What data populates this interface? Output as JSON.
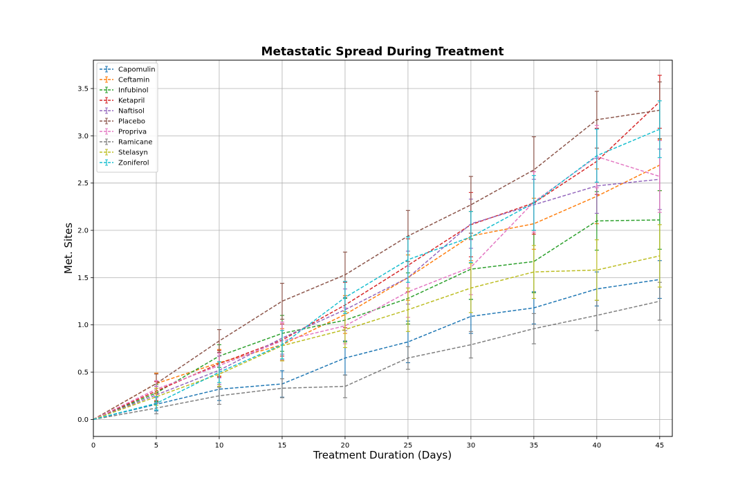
{
  "chart_data": {
    "type": "line",
    "title": "Metastatic Spread During Treatment",
    "xlabel": "Treatment Duration (Days)",
    "ylabel": "Met. Sites",
    "xlim": [
      0,
      46
    ],
    "ylim": [
      -0.18,
      3.8
    ],
    "xticks": [
      0,
      5,
      10,
      15,
      20,
      25,
      30,
      35,
      40,
      45
    ],
    "yticks": [
      0.0,
      0.5,
      1.0,
      1.5,
      2.0,
      2.5,
      3.0,
      3.5
    ],
    "ytick_labels": [
      "0.0",
      "0.5",
      "1.0",
      "1.5",
      "2.0",
      "2.5",
      "3.0",
      "3.5"
    ],
    "grid": true,
    "legend_position": "upper-left",
    "line_style": "dashed",
    "x": [
      0,
      5,
      10,
      15,
      20,
      25,
      30,
      35,
      40,
      45
    ],
    "series": [
      {
        "name": "Capomulin",
        "color": "#1f77b4",
        "values": [
          0.0,
          0.16,
          0.32,
          0.375,
          0.65,
          0.82,
          1.09,
          1.18,
          1.38,
          1.48
        ],
        "errors": [
          0.0,
          0.07,
          0.12,
          0.14,
          0.18,
          0.22,
          0.18,
          0.17,
          0.18,
          0.2
        ]
      },
      {
        "name": "Ceftamin",
        "color": "#ff7f0e",
        "values": [
          0.0,
          0.38,
          0.6,
          0.79,
          1.11,
          1.5,
          1.94,
          2.07,
          2.36,
          2.69
        ],
        "errors": [
          0.0,
          0.11,
          0.14,
          0.17,
          0.2,
          0.24,
          0.26,
          0.27,
          0.29,
          0.27
        ]
      },
      {
        "name": "Infubinol",
        "color": "#2ca02c",
        "values": [
          0.0,
          0.28,
          0.67,
          0.91,
          1.05,
          1.28,
          1.59,
          1.67,
          2.1,
          2.11
        ],
        "errors": [
          0.0,
          0.09,
          0.12,
          0.19,
          0.23,
          0.27,
          0.32,
          0.33,
          0.31,
          0.31
        ]
      },
      {
        "name": "Ketapril",
        "color": "#d62728",
        "values": [
          0.0,
          0.3,
          0.59,
          0.84,
          1.21,
          1.63,
          2.06,
          2.29,
          2.73,
          3.36
        ],
        "errors": [
          0.0,
          0.1,
          0.14,
          0.17,
          0.24,
          0.28,
          0.34,
          0.33,
          0.35,
          0.28
        ]
      },
      {
        "name": "Naftisol",
        "color": "#9467bd",
        "values": [
          0.0,
          0.26,
          0.52,
          0.86,
          1.16,
          1.5,
          2.07,
          2.27,
          2.47,
          2.54
        ],
        "errors": [
          0.0,
          0.09,
          0.15,
          0.17,
          0.22,
          0.28,
          0.26,
          0.27,
          0.29,
          0.32
        ]
      },
      {
        "name": "Placebo",
        "color": "#8c564b",
        "values": [
          0.0,
          0.38,
          0.83,
          1.25,
          1.53,
          1.94,
          2.27,
          2.64,
          3.17,
          3.27
        ],
        "errors": [
          0.0,
          0.1,
          0.12,
          0.19,
          0.24,
          0.27,
          0.3,
          0.35,
          0.3,
          0.3
        ]
      },
      {
        "name": "Propriva",
        "color": "#e377c2",
        "values": [
          0.0,
          0.32,
          0.57,
          0.83,
          0.99,
          1.35,
          1.61,
          2.3,
          2.78,
          2.57
        ],
        "errors": [
          0.0,
          0.09,
          0.13,
          0.2,
          0.19,
          0.27,
          0.29,
          0.32,
          0.33,
          0.38
        ]
      },
      {
        "name": "Ramicane",
        "color": "#7f7f7f",
        "values": [
          0.0,
          0.12,
          0.25,
          0.33,
          0.35,
          0.65,
          0.79,
          0.96,
          1.1,
          1.25
        ],
        "errors": [
          0.0,
          0.06,
          0.09,
          0.1,
          0.12,
          0.12,
          0.14,
          0.16,
          0.16,
          0.2
        ]
      },
      {
        "name": "Stelasyn",
        "color": "#bcbd22",
        "values": [
          0.0,
          0.24,
          0.48,
          0.78,
          0.95,
          1.16,
          1.39,
          1.56,
          1.58,
          1.73
        ],
        "errors": [
          0.0,
          0.09,
          0.13,
          0.16,
          0.19,
          0.23,
          0.26,
          0.28,
          0.32,
          0.33
        ]
      },
      {
        "name": "Zoniferol",
        "color": "#17becf",
        "values": [
          0.0,
          0.17,
          0.5,
          0.79,
          1.29,
          1.69,
          1.93,
          2.29,
          2.79,
          3.07
        ],
        "errors": [
          0.0,
          0.07,
          0.11,
          0.15,
          0.17,
          0.24,
          0.27,
          0.29,
          0.28,
          0.3
        ]
      }
    ]
  }
}
